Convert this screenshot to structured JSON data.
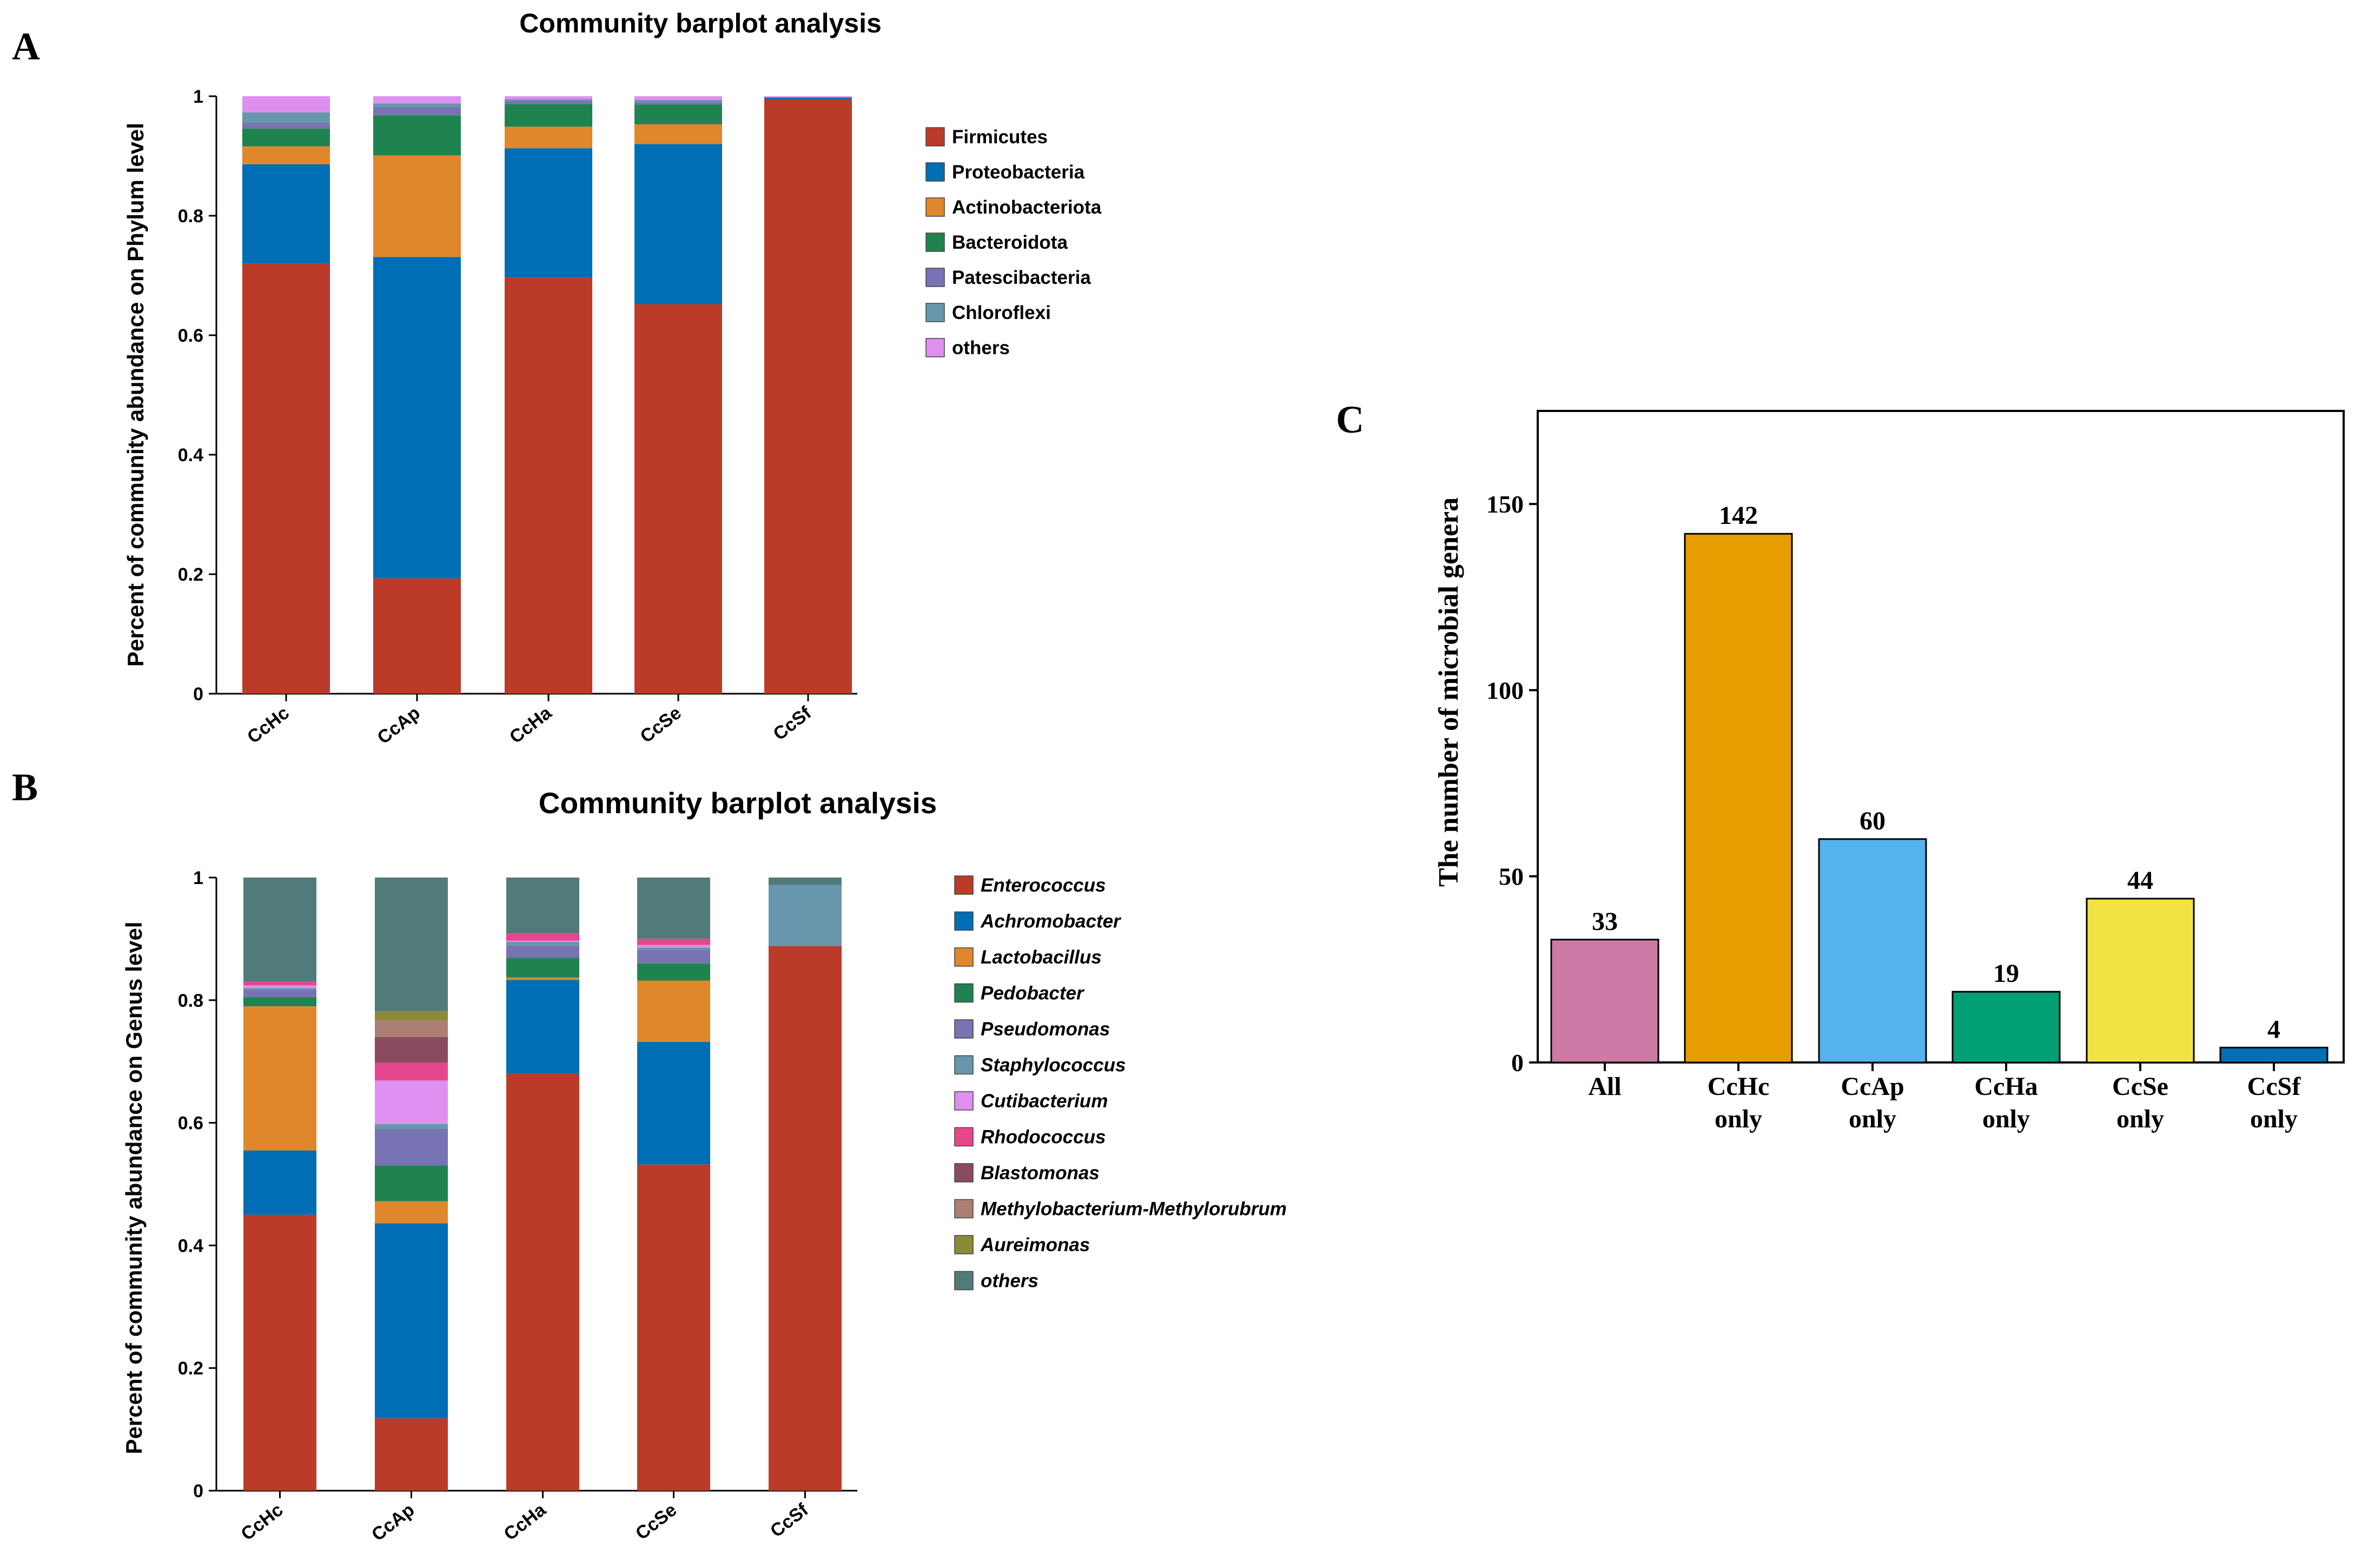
{
  "panels": [
    {
      "letter": "A",
      "chart_data": {
        "type": "bar",
        "stacked": true,
        "title": "Community barplot analysis",
        "xlabel": "",
        "ylabel": "Percent of community abundance on Phylum level",
        "ylim": [
          0,
          1
        ],
        "yticks": [
          "0",
          "0.2",
          "0.4",
          "0.6",
          "0.8",
          "1"
        ],
        "categories": [
          "CcHc",
          "CcAp",
          "CcHa",
          "CcSe",
          "CcSf"
        ],
        "series": [
          {
            "name": "Firmicutes",
            "color": "#bb3a28",
            "values": [
              0.72,
              0.193,
              0.697,
              0.652,
              0.995
            ]
          },
          {
            "name": "Proteobacteria",
            "color": "#006eb4",
            "values": [
              0.166,
              0.538,
              0.216,
              0.268,
              0.003
            ]
          },
          {
            "name": "Actinobacteriota",
            "color": "#e0872b",
            "values": [
              0.03,
              0.17,
              0.036,
              0.033,
              0.0
            ]
          },
          {
            "name": "Bacteroidota",
            "color": "#1f8350",
            "values": [
              0.03,
              0.067,
              0.038,
              0.033,
              0.0
            ]
          },
          {
            "name": "Patescibacteria",
            "color": "#7873b3",
            "values": [
              0.01,
              0.014,
              0.006,
              0.004,
              0.0
            ]
          },
          {
            "name": "Chloroflexi",
            "color": "#6796ad",
            "values": [
              0.017,
              0.006,
              0.002,
              0.004,
              0.0
            ]
          },
          {
            "name": "others",
            "color": "#de8ff0",
            "values": [
              0.027,
              0.012,
              0.005,
              0.006,
              0.002
            ]
          }
        ],
        "legend_italic": false
      }
    },
    {
      "letter": "B",
      "chart_data": {
        "type": "bar",
        "stacked": true,
        "title": "Community barplot analysis",
        "xlabel": "",
        "ylabel": "Percent of community abundance on Genus level",
        "ylim": [
          0,
          1
        ],
        "yticks": [
          "0",
          "0.2",
          "0.4",
          "0.6",
          "0.8",
          "1"
        ],
        "categories": [
          "CcHc",
          "CcAp",
          "CcHa",
          "CcSe",
          "CcSf"
        ],
        "series": [
          {
            "name": "Enterococcus",
            "color": "#bb3a28",
            "values": [
              0.45,
              0.118,
              0.68,
              0.532,
              0.888
            ]
          },
          {
            "name": "Achromobacter",
            "color": "#006eb4",
            "values": [
              0.105,
              0.318,
              0.153,
              0.2,
              0.0
            ]
          },
          {
            "name": "Lactobacillus",
            "color": "#e0872b",
            "values": [
              0.235,
              0.036,
              0.004,
              0.1,
              0.0
            ]
          },
          {
            "name": "Pedobacter",
            "color": "#1f8350",
            "values": [
              0.015,
              0.058,
              0.032,
              0.028,
              0.0
            ]
          },
          {
            "name": "Pseudomonas",
            "color": "#7873b3",
            "values": [
              0.012,
              0.06,
              0.02,
              0.022,
              0.0
            ]
          },
          {
            "name": "Staphylococcus",
            "color": "#6796ad",
            "values": [
              0.003,
              0.008,
              0.006,
              0.004,
              0.1
            ]
          },
          {
            "name": "Cutibacterium",
            "color": "#de8ff0",
            "values": [
              0.004,
              0.071,
              0.002,
              0.004,
              0.0
            ]
          },
          {
            "name": "Rhodococcus",
            "color": "#e8468c",
            "values": [
              0.006,
              0.029,
              0.012,
              0.01,
              0.0
            ]
          },
          {
            "name": "Blastomonas",
            "color": "#8b4b5e",
            "values": [
              0.0,
              0.042,
              0.0,
              0.0,
              0.0
            ]
          },
          {
            "name": "Methylobacterium-Methylorubrum",
            "color": "#ac7f74",
            "values": [
              0.0,
              0.027,
              0.0,
              0.0,
              0.0
            ]
          },
          {
            "name": "Aureimonas",
            "color": "#8b8a36",
            "values": [
              0.0,
              0.015,
              0.0,
              0.0,
              0.0
            ]
          },
          {
            "name": "others",
            "color": "#517b7b",
            "values": [
              0.17,
              0.218,
              0.091,
              0.1,
              0.012
            ]
          }
        ],
        "legend_italic": true
      }
    },
    {
      "letter": "C",
      "chart_data": {
        "type": "bar",
        "title": "",
        "xlabel": "",
        "ylabel": "The number of microbial genera",
        "ylim": [
          0,
          175
        ],
        "yticks": [
          0,
          50,
          100,
          150
        ],
        "categories": [
          [
            "All"
          ],
          [
            "CcHc",
            "only"
          ],
          [
            "CcAp",
            "only"
          ],
          [
            "CcHa",
            "only"
          ],
          [
            "CcSe",
            "only"
          ],
          [
            "CcSf",
            "only"
          ]
        ],
        "values": [
          33,
          142,
          60,
          19,
          44,
          4
        ],
        "labels": [
          "33",
          "142",
          "60",
          "19",
          "44",
          "4"
        ],
        "colors": [
          "#cd79a6",
          "#e79c00",
          "#55b2ec",
          "#009f74",
          "#f1e342",
          "#0070b2"
        ]
      }
    }
  ]
}
